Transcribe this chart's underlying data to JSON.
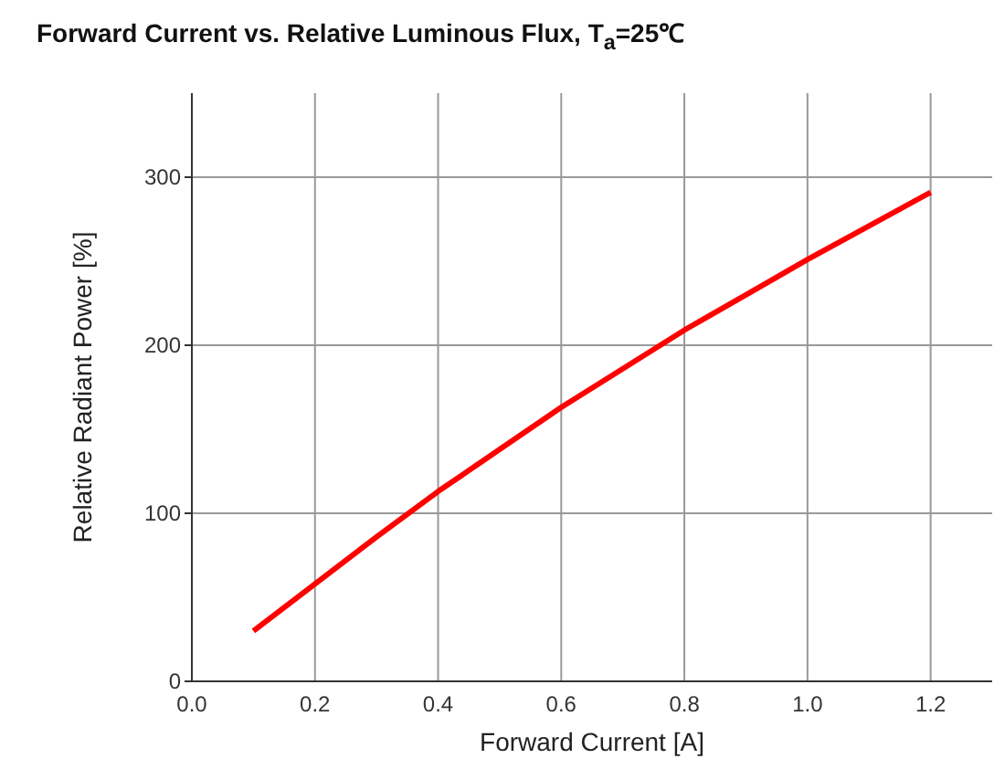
{
  "chart_data": {
    "type": "line",
    "title": "Forward Current vs. Relative Luminous Flux, T$_{a}$=25℃",
    "xlabel": "Forward Current [A]",
    "ylabel": "Relative Radiant Power [%]",
    "x": [
      0.1,
      0.2,
      0.3,
      0.4,
      0.5,
      0.6,
      0.7,
      0.8,
      0.9,
      1.0,
      1.1,
      1.2
    ],
    "series": [
      {
        "color": "#ff0000",
        "values": [
          30,
          58,
          86,
          113,
          138,
          163,
          186,
          209,
          230,
          251,
          271,
          291
        ]
      }
    ],
    "xlim": [
      0,
      1.3
    ],
    "ylim": [
      0,
      350
    ],
    "xticks": [
      {
        "value": 0,
        "label": "0.0"
      },
      0.2,
      0.4,
      0.6,
      0.8,
      {
        "value": 1,
        "label": "1.0"
      },
      1.2
    ],
    "yticks": [
      0,
      100,
      200,
      300
    ],
    "grid": true,
    "marker": "none",
    "line_style": "solid"
  }
}
